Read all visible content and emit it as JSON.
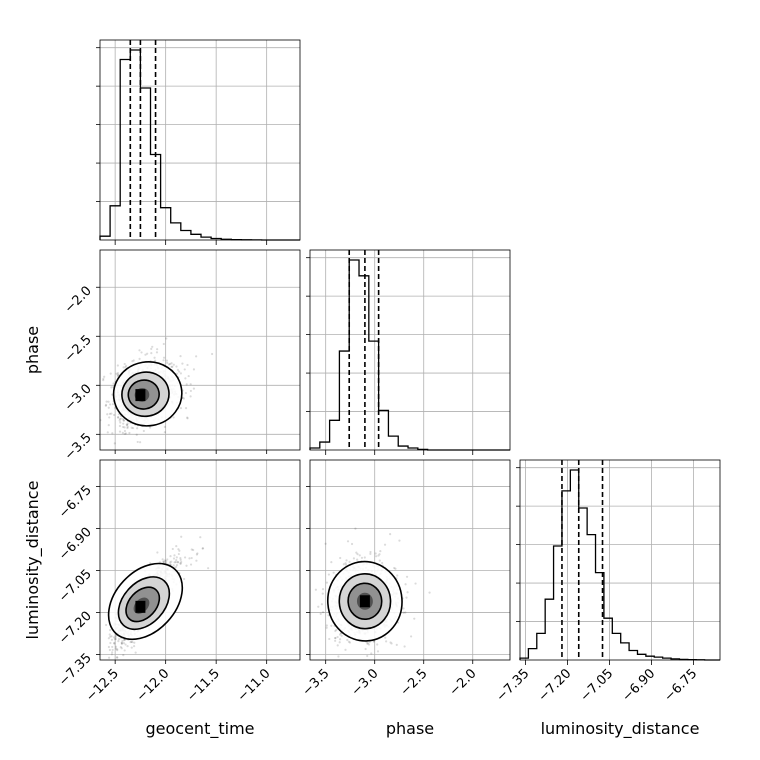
{
  "chart_data": {
    "type": "corner",
    "parameters": [
      "geocent_time",
      "phase",
      "luminosity_distance"
    ],
    "axis_labels": {
      "geocent_time": "geocent_time",
      "phase": "phase",
      "luminosity_distance": "luminosity_distance"
    },
    "ranges": {
      "geocent_time": [
        -12.65,
        -10.67
      ],
      "phase": [
        -3.66,
        -1.62
      ],
      "luminosity_distance": [
        -7.37,
        -6.655
      ]
    },
    "ticks": {
      "geocent_time": [
        -12.5,
        -12.0,
        -11.5,
        -11.0
      ],
      "phase": [
        -3.5,
        -3.0,
        -2.5,
        -2.0
      ],
      "luminosity_distance": [
        -7.35,
        -7.2,
        -7.05,
        -6.9,
        -6.75
      ]
    },
    "tick_labels": {
      "geocent_time": [
        "−12.5",
        "−12.0",
        "−11.5",
        "−11.0"
      ],
      "phase": [
        "−3.5",
        "−3.0",
        "−2.5",
        "−2.0"
      ],
      "luminosity_distance": [
        "−7.35",
        "−7.20",
        "−7.05",
        "−6.90",
        "−6.75"
      ]
    },
    "histograms": {
      "geocent_time": {
        "edges": [
          -12.65,
          -12.55,
          -12.45,
          -12.35,
          -12.25,
          -12.15,
          -12.05,
          -11.95,
          -11.85,
          -11.75,
          -11.65,
          -11.55,
          -11.45,
          -11.35,
          -11.25,
          -11.15,
          -11.05,
          -10.95,
          -10.85,
          -10.75,
          -10.67
        ],
        "counts": [
          2,
          18,
          95,
          100,
          80,
          45,
          17,
          9,
          5,
          3,
          1.5,
          0.8,
          0.4,
          0.2,
          0.1,
          0.05,
          0,
          0,
          0,
          0
        ],
        "quantiles": [
          -12.35,
          -12.25,
          -12.1
        ]
      },
      "phase": {
        "edges": [
          -3.66,
          -3.56,
          -3.46,
          -3.36,
          -3.26,
          -3.16,
          -3.06,
          -2.96,
          -2.86,
          -2.76,
          -2.66,
          -2.56,
          -2.46,
          -2.36,
          -2.26,
          -2.16,
          -2.06,
          -1.96,
          -1.86,
          -1.76,
          -1.62
        ],
        "counts": [
          1,
          4,
          15,
          50,
          96,
          88,
          55,
          20,
          7,
          2,
          1,
          0.3,
          0,
          0,
          0,
          0,
          0,
          0,
          0,
          0
        ],
        "quantiles": [
          -3.26,
          -3.1,
          -2.96
        ]
      },
      "luminosity_distance": {
        "edges": [
          -7.37,
          -7.34,
          -7.31,
          -7.28,
          -7.25,
          -7.22,
          -7.19,
          -7.16,
          -7.13,
          -7.1,
          -7.07,
          -7.04,
          -7.01,
          -6.98,
          -6.95,
          -6.92,
          -6.89,
          -6.86,
          -6.83,
          -6.8,
          -6.77,
          -6.74,
          -6.71,
          -6.68,
          -6.655
        ],
        "counts": [
          1,
          6,
          14,
          32,
          60,
          89,
          100,
          80,
          66,
          46,
          22,
          14,
          9,
          5,
          3,
          2,
          1.5,
          1,
          0.6,
          0.3,
          0.2,
          0.1,
          0,
          0
        ],
        "quantiles": [
          -7.22,
          -7.16,
          -7.075
        ]
      }
    },
    "density_peaks": {
      "phase_vs_geocent_time": {
        "x": -12.25,
        "y": -3.1
      },
      "luminosity_distance_vs_geocent_time": {
        "x": -12.25,
        "y": -7.18
      },
      "luminosity_distance_vs_phase": {
        "x": -3.1,
        "y": -7.16
      }
    },
    "contour_levels": 3,
    "scatter_color": "#000000",
    "quantile_line_style": "dashed",
    "grid": true
  }
}
